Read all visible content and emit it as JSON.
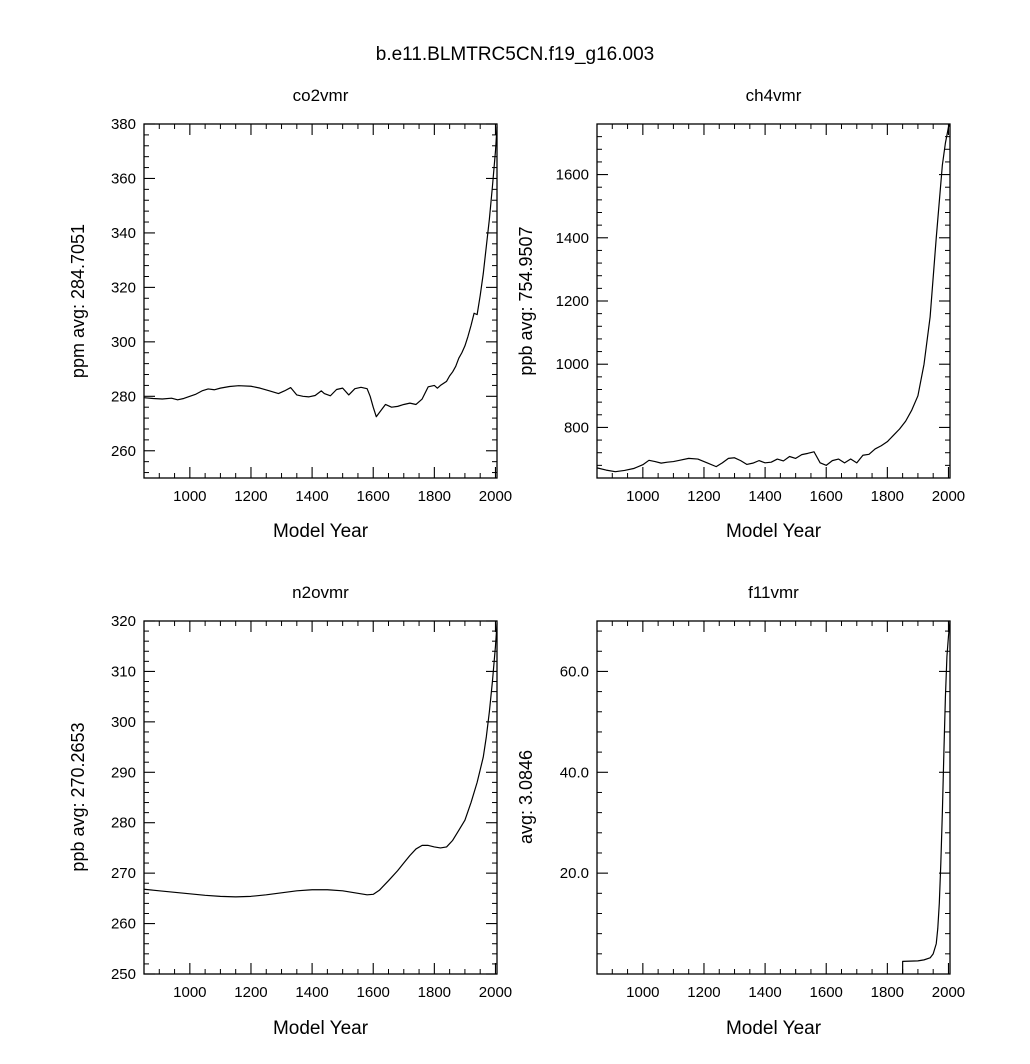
{
  "figure_title": "b.e11.BLMTRC5CN.f19_g16.003",
  "chart_data": [
    {
      "type": "line",
      "title": "co2vmr",
      "xlabel": "Model Year",
      "ylabel": "ppm  avg:    284.7051",
      "xlim": [
        850,
        2005
      ],
      "ylim": [
        250,
        380
      ],
      "xticks": [
        1000,
        1200,
        1400,
        1600,
        1800,
        2000
      ],
      "yticks": [
        260,
        280,
        300,
        320,
        340,
        360,
        380
      ],
      "ytick_labels": [
        "260",
        "280",
        "300",
        "320",
        "340",
        "360",
        "380"
      ],
      "grid": false,
      "x": [
        850,
        880,
        910,
        940,
        960,
        980,
        1000,
        1020,
        1040,
        1060,
        1080,
        1100,
        1130,
        1160,
        1200,
        1230,
        1260,
        1290,
        1310,
        1330,
        1350,
        1370,
        1390,
        1410,
        1430,
        1440,
        1460,
        1480,
        1500,
        1520,
        1540,
        1560,
        1580,
        1590,
        1600,
        1610,
        1620,
        1640,
        1660,
        1680,
        1700,
        1720,
        1740,
        1760,
        1780,
        1800,
        1810,
        1820,
        1840,
        1850,
        1860,
        1870,
        1880,
        1890,
        1900,
        1910,
        1920,
        1930,
        1940,
        1950,
        1960,
        1970,
        1980,
        1990,
        2000,
        2005
      ],
      "values": [
        279.5,
        279.2,
        279.0,
        279.3,
        278.7,
        279.2,
        280.0,
        280.8,
        282.0,
        282.7,
        282.4,
        283.0,
        283.6,
        283.9,
        283.7,
        283.0,
        282.0,
        281.0,
        282.0,
        283.2,
        280.5,
        280.0,
        279.8,
        280.3,
        282.0,
        281.0,
        280.2,
        282.5,
        283.0,
        280.5,
        282.8,
        283.3,
        282.8,
        280.0,
        276.0,
        272.5,
        274.0,
        277.0,
        276.0,
        276.3,
        277.0,
        277.5,
        277.0,
        279.0,
        283.5,
        284.0,
        283.0,
        284.0,
        285.5,
        287.5,
        289.0,
        291.0,
        294.0,
        296.0,
        298.5,
        302.0,
        306.0,
        310.5,
        310.0,
        317.0,
        325.0,
        335.0,
        345.0,
        357.0,
        370.0,
        379.0
      ]
    },
    {
      "type": "line",
      "title": "ch4vmr",
      "xlabel": "Model Year",
      "ylabel": "ppb  avg:    754.9507",
      "xlim": [
        850,
        2005
      ],
      "ylim": [
        640,
        1760
      ],
      "xticks": [
        1000,
        1200,
        1400,
        1600,
        1800,
        2000
      ],
      "yticks": [
        800,
        1000,
        1200,
        1400,
        1600
      ],
      "ytick_labels": [
        "800",
        "1000",
        "1200",
        "1400",
        "1600"
      ],
      "grid": false,
      "x": [
        850,
        880,
        910,
        940,
        970,
        1000,
        1020,
        1040,
        1060,
        1080,
        1100,
        1120,
        1150,
        1180,
        1210,
        1240,
        1260,
        1280,
        1300,
        1320,
        1340,
        1360,
        1380,
        1400,
        1420,
        1440,
        1460,
        1480,
        1500,
        1520,
        1540,
        1560,
        1580,
        1600,
        1620,
        1640,
        1660,
        1680,
        1700,
        1720,
        1740,
        1760,
        1780,
        1800,
        1820,
        1840,
        1860,
        1880,
        1900,
        1920,
        1940,
        1960,
        1980,
        1990,
        2000,
        2005
      ],
      "values": [
        672,
        665,
        660,
        664,
        670,
        682,
        696,
        692,
        687,
        690,
        692,
        696,
        702,
        700,
        688,
        676,
        688,
        702,
        704,
        695,
        683,
        687,
        695,
        688,
        690,
        700,
        694,
        708,
        702,
        714,
        718,
        723,
        688,
        680,
        695,
        700,
        688,
        700,
        688,
        712,
        715,
        732,
        742,
        755,
        775,
        795,
        820,
        855,
        900,
        1000,
        1150,
        1400,
        1630,
        1700,
        1750,
        1760
      ]
    },
    {
      "type": "line",
      "title": "n2ovmr",
      "xlabel": "Model Year",
      "ylabel": "ppb  avg:    270.2653",
      "xlim": [
        850,
        2005
      ],
      "ylim": [
        250,
        320
      ],
      "xticks": [
        1000,
        1200,
        1400,
        1600,
        1800,
        2000
      ],
      "yticks": [
        250,
        260,
        270,
        280,
        290,
        300,
        310,
        320
      ],
      "ytick_labels": [
        "250",
        "260",
        "270",
        "280",
        "290",
        "300",
        "310",
        "320"
      ],
      "grid": false,
      "x": [
        850,
        900,
        950,
        1000,
        1050,
        1100,
        1150,
        1200,
        1250,
        1300,
        1350,
        1400,
        1450,
        1500,
        1550,
        1580,
        1600,
        1620,
        1650,
        1680,
        1700,
        1720,
        1740,
        1760,
        1780,
        1800,
        1820,
        1840,
        1860,
        1880,
        1900,
        1920,
        1940,
        1960,
        1970,
        1980,
        1990,
        2000,
        2005
      ],
      "values": [
        266.8,
        266.5,
        266.2,
        265.9,
        265.6,
        265.4,
        265.3,
        265.4,
        265.7,
        266.1,
        266.5,
        266.7,
        266.7,
        266.5,
        266.0,
        265.7,
        265.8,
        266.6,
        268.5,
        270.5,
        272.0,
        273.5,
        274.8,
        275.5,
        275.5,
        275.2,
        275.0,
        275.2,
        276.5,
        278.5,
        280.5,
        284.0,
        288.0,
        293.0,
        297.0,
        302.0,
        308.0,
        315.0,
        319.5
      ]
    },
    {
      "type": "line",
      "title": "f11vmr",
      "xlabel": "Model Year",
      "ylabel": "avg:    3.0846",
      "xlim": [
        850,
        2005
      ],
      "ylim": [
        0,
        70
      ],
      "xticks": [
        1000,
        1200,
        1400,
        1600,
        1800,
        2000
      ],
      "yticks": [
        20,
        40,
        60
      ],
      "ytick_labels": [
        "20.0",
        "40.0",
        "60.0"
      ],
      "grid": false,
      "x": [
        1850,
        1850.1,
        1900,
        1920,
        1940,
        1950,
        1960,
        1965,
        1970,
        1975,
        1980,
        1985,
        1990,
        1995,
        2000,
        2005
      ],
      "values": [
        0,
        2.5,
        2.6,
        2.8,
        3.2,
        4.0,
        6.0,
        9.0,
        14.0,
        22.0,
        32.0,
        44.0,
        55.0,
        63.0,
        67.0,
        70.0
      ]
    }
  ]
}
